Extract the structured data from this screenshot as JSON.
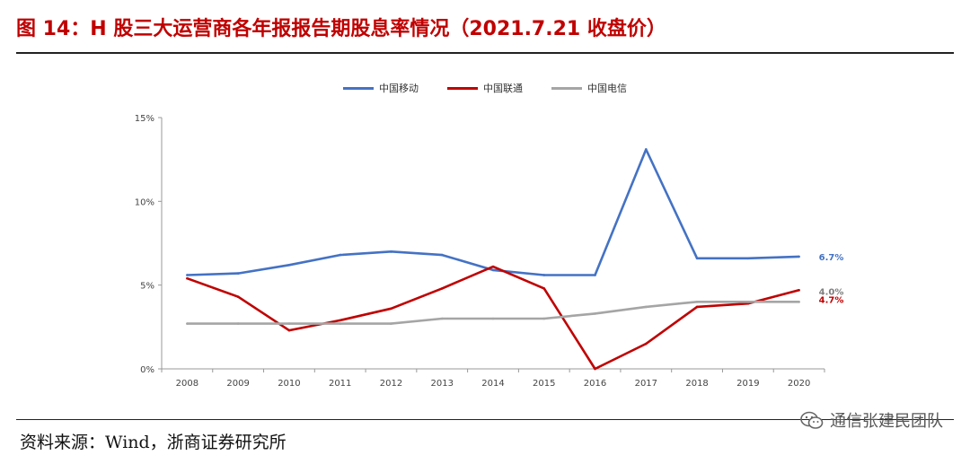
{
  "header": {
    "title": "图 14：H 股三大运营商各年报报告期股息率情况（2021.7.21 收盘价）"
  },
  "footer": {
    "source": "资料来源：Wind，浙商证券研究所",
    "watermark": "通信张建民团队",
    "watermark_icon": "wechat-icon"
  },
  "chart_data": {
    "type": "line",
    "x": [
      "2008",
      "2009",
      "2010",
      "2011",
      "2012",
      "2013",
      "2014",
      "2015",
      "2016",
      "2017",
      "2018",
      "2019",
      "2020"
    ],
    "y_ticks": [
      "0%",
      "5%",
      "10%",
      "15%"
    ],
    "ylim": [
      0,
      15
    ],
    "grid": false,
    "legend_position": "top-center",
    "series": [
      {
        "name": "中国移动",
        "color": "#4472c4",
        "values": [
          5.6,
          5.7,
          6.2,
          6.8,
          7.0,
          6.8,
          5.9,
          5.6,
          5.6,
          13.1,
          6.6,
          6.6,
          6.7
        ],
        "end_label": "6.7%"
      },
      {
        "name": "中国联通",
        "color": "#c00000",
        "values": [
          5.4,
          4.3,
          2.3,
          2.9,
          3.6,
          4.8,
          6.1,
          4.8,
          0.0,
          1.5,
          3.7,
          3.9,
          4.7
        ],
        "end_label": "4.7%"
      },
      {
        "name": "中国电信",
        "color": "#a5a5a5",
        "values": [
          2.7,
          2.7,
          2.7,
          2.7,
          2.7,
          3.0,
          3.0,
          3.0,
          3.3,
          3.7,
          4.0,
          4.0,
          4.0
        ],
        "end_label": "4.0%"
      }
    ]
  }
}
